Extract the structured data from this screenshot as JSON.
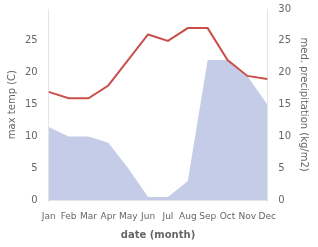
{
  "chart_data": {
    "type": "line",
    "categories": [
      "Jan",
      "Feb",
      "Mar",
      "Apr",
      "May",
      "Jun",
      "Jul",
      "Aug",
      "Sep",
      "Oct",
      "Nov",
      "Dec"
    ],
    "xlabel": "date (month)",
    "ylabel": "max temp (C)",
    "y2label": "med. precipitation (kg/m2)",
    "series": [
      {
        "type": "area",
        "color": "#c5cce8",
        "axis": "y2",
        "values": [
          11.5,
          10,
          10,
          9,
          5,
          0.5,
          0.5,
          3,
          22,
          22,
          19.5,
          15
        ]
      },
      {
        "type": "line",
        "color": "#c9504a",
        "values": [
          17,
          16,
          16,
          18,
          22,
          26,
          25,
          27,
          27,
          22,
          19.5,
          19
        ]
      }
    ],
    "ylim": [
      0,
      30
    ],
    "yticks": [
      0,
      5,
      10,
      15,
      20,
      25
    ],
    "y2lim": [
      0,
      30
    ],
    "y2ticks": [
      0,
      5,
      10,
      15,
      20,
      25,
      30
    ],
    "grid": false
  }
}
